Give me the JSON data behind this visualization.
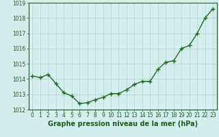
{
  "x": [
    0,
    1,
    2,
    3,
    4,
    5,
    6,
    7,
    8,
    9,
    10,
    11,
    12,
    13,
    14,
    15,
    16,
    17,
    18,
    19,
    20,
    21,
    22,
    23
  ],
  "y": [
    1014.2,
    1014.1,
    1014.3,
    1013.7,
    1013.1,
    1012.9,
    1012.4,
    1012.45,
    1012.65,
    1012.8,
    1013.05,
    1013.05,
    1013.3,
    1013.65,
    1013.85,
    1013.85,
    1014.65,
    1015.1,
    1015.2,
    1016.0,
    1016.2,
    1017.0,
    1018.0,
    1018.6
  ],
  "line_color": "#1a6b1a",
  "marker_color": "#1a6b1a",
  "bg_color": "#d4eeee",
  "grid_color": "#b0d4d4",
  "xlabel": "Graphe pression niveau de la mer (hPa)",
  "xlim": [
    -0.5,
    23.5
  ],
  "ylim": [
    1012,
    1019
  ],
  "yticks": [
    1012,
    1013,
    1014,
    1015,
    1016,
    1017,
    1018,
    1019
  ],
  "xticks": [
    0,
    1,
    2,
    3,
    4,
    5,
    6,
    7,
    8,
    9,
    10,
    11,
    12,
    13,
    14,
    15,
    16,
    17,
    18,
    19,
    20,
    21,
    22,
    23
  ],
  "text_color": "#1a5c1a",
  "title_fontsize": 7.0,
  "tick_fontsize": 5.5,
  "marker_size": 4,
  "line_width": 1.0
}
